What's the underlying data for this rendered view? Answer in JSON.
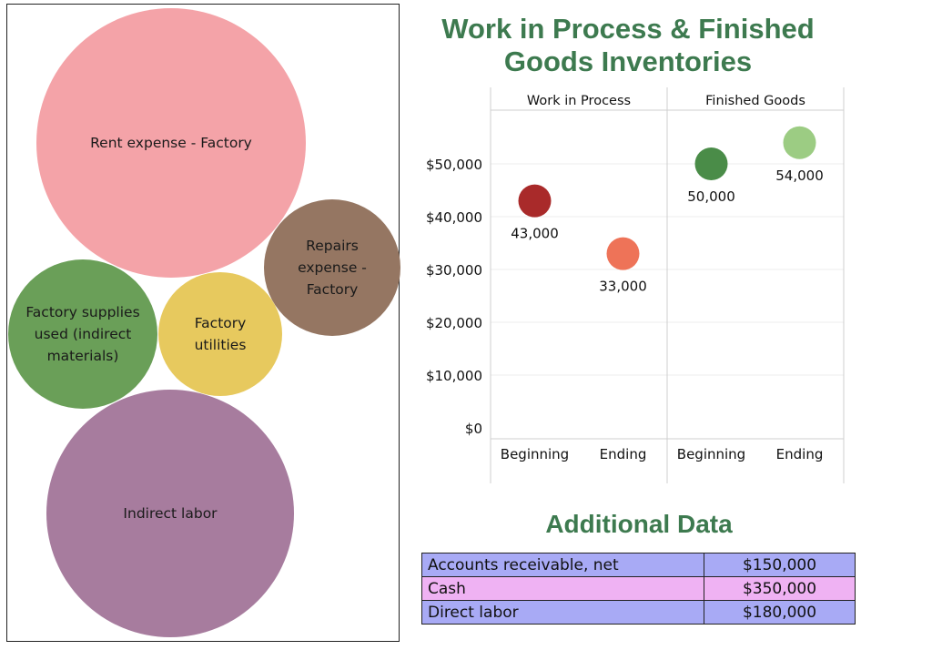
{
  "bubbles": {
    "items": [
      {
        "label": "Rent expense - Factory",
        "color": "#f4a3a8"
      },
      {
        "label": "Repairs expense - Factory",
        "color": "#957662"
      },
      {
        "label": "Factory supplies used (indirect materials)",
        "color": "#6a9f58"
      },
      {
        "label": "Factory utilities",
        "color": "#e7c95e"
      },
      {
        "label": "Indirect labor",
        "color": "#a77c9e"
      }
    ]
  },
  "scatter": {
    "title": "Work in Process & Finished Goods Inventories"
  },
  "chart_data": {
    "type": "scatter",
    "title": "Work in Process & Finished Goods Inventories",
    "xlabel": "",
    "ylabel": "",
    "ylim": [
      0,
      57000
    ],
    "yticks": [
      0,
      10000,
      20000,
      30000,
      40000,
      50000
    ],
    "ytick_labels": [
      "$0",
      "$10,000",
      "$20,000",
      "$30,000",
      "$40,000",
      "$50,000"
    ],
    "grid": true,
    "panels": [
      {
        "name": "Work in Process",
        "categories": [
          "Beginning",
          "Ending"
        ],
        "values": [
          43000,
          33000
        ],
        "labels": [
          "43,000",
          "33,000"
        ],
        "colors": [
          "#a92a2a",
          "#ee7358"
        ]
      },
      {
        "name": "Finished Goods",
        "categories": [
          "Beginning",
          "Ending"
        ],
        "values": [
          50000,
          54000
        ],
        "labels": [
          "50,000",
          "54,000"
        ],
        "colors": [
          "#4a8c48",
          "#9ccc83"
        ]
      }
    ]
  },
  "additional": {
    "title": "Additional Data",
    "rows": [
      {
        "label": "Accounts receivable, net",
        "value": "$150,000",
        "color": "#a8aaf5"
      },
      {
        "label": "Cash",
        "value": "$350,000",
        "color": "#efb2f3"
      },
      {
        "label": "Direct labor",
        "value": "$180,000",
        "color": "#a8aaf5"
      }
    ]
  }
}
